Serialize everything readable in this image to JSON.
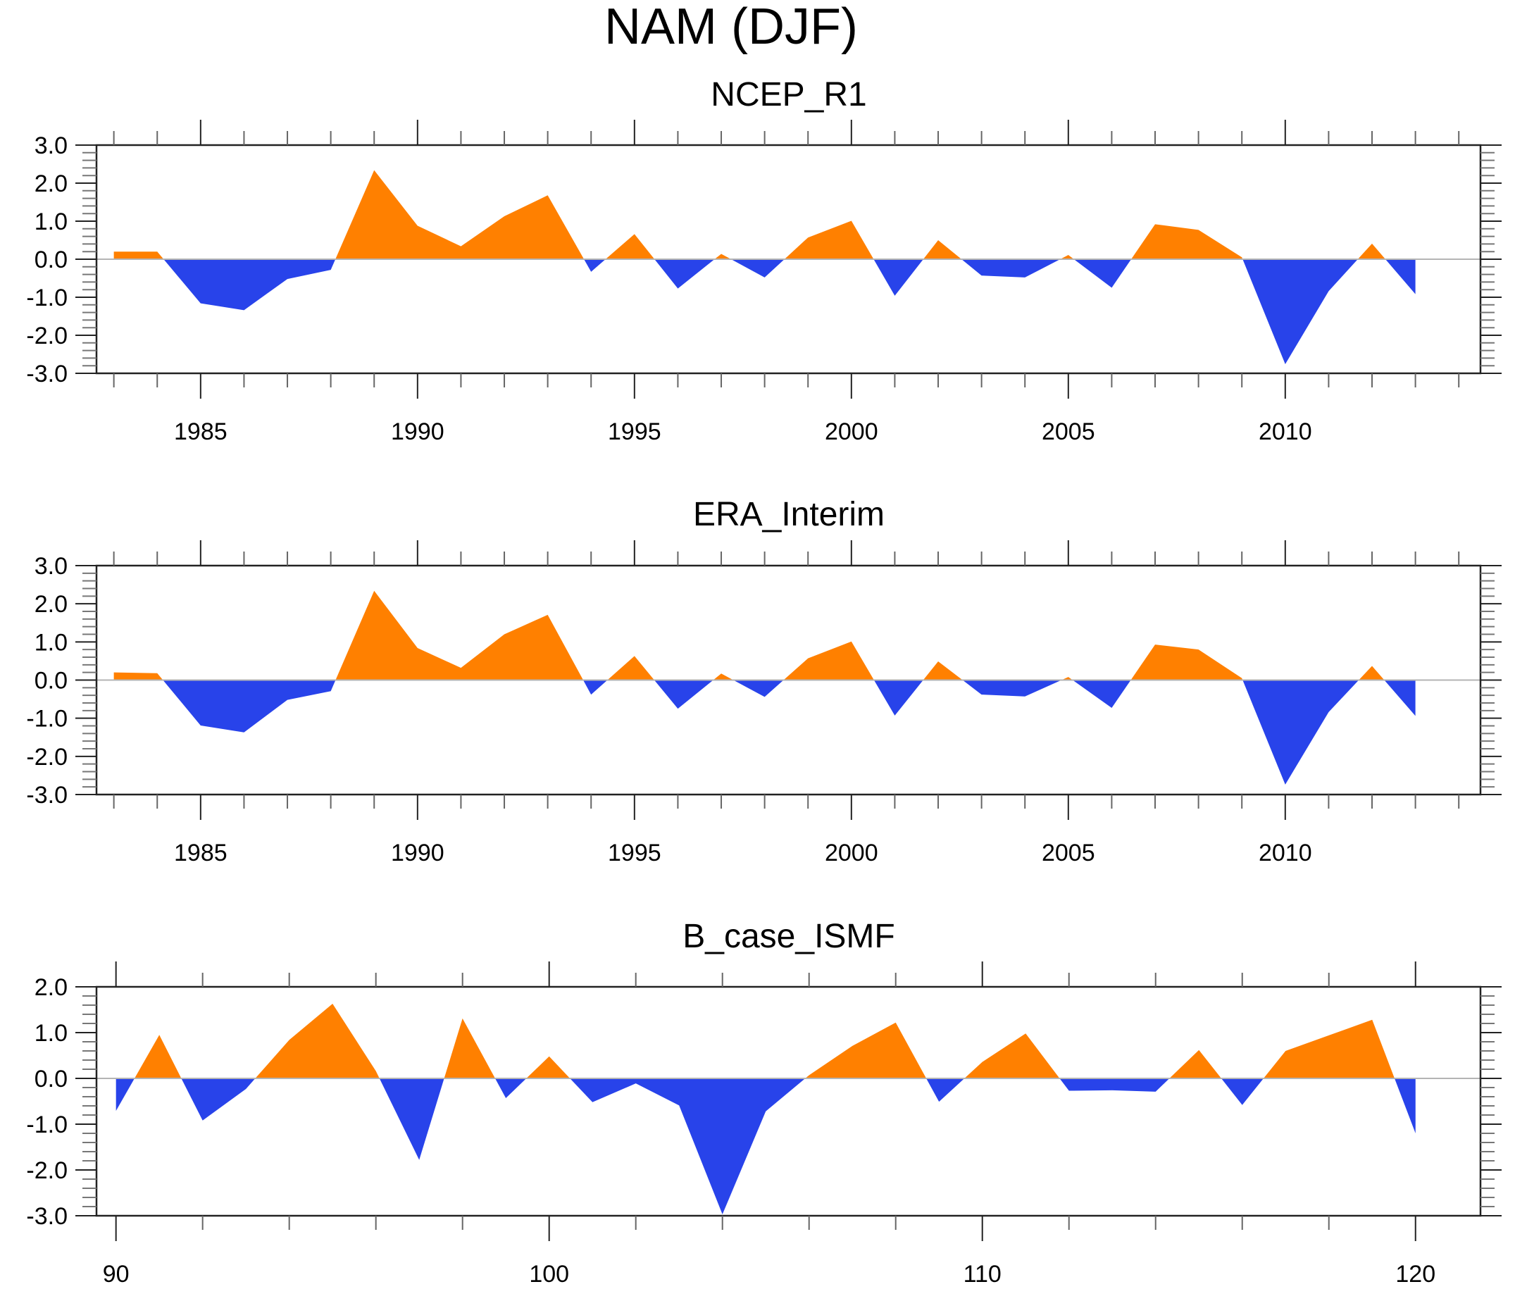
{
  "figure": {
    "title": "NAM (DJF)",
    "colors": {
      "positive": "#ff8000",
      "negative": "#2843ea",
      "axis": "#000000",
      "zero_line": "#b4b4b4"
    }
  },
  "chart_data": [
    {
      "type": "area",
      "title": "NCEP_R1",
      "xlabel": "",
      "ylabel": "",
      "xlim": [
        1982.6,
        2014.5
      ],
      "ylim": [
        -3.0,
        3.0
      ],
      "x_major_ticks": [
        1985,
        1990,
        1995,
        2000,
        2005,
        2010
      ],
      "x_tick_labels": [
        "1985",
        "1990",
        "1995",
        "2000",
        "2005",
        "2010"
      ],
      "x_minor_step": 1,
      "y_major_ticks": [
        3.0,
        2.0,
        1.0,
        0.0,
        -1.0,
        -2.0,
        -3.0
      ],
      "y_tick_labels": [
        "3.0",
        "2.0",
        "1.0",
        "0.0",
        "-1.0",
        "-2.0",
        "-3.0"
      ],
      "y_minor_step": 0.2,
      "grid": false,
      "fill_above_zero": "orange",
      "fill_below_zero": "blue",
      "x": [
        1983,
        1984,
        1985,
        1986,
        1987,
        1988,
        1989,
        1990,
        1991,
        1992,
        1993,
        1994,
        1995,
        1996,
        1997,
        1998,
        1999,
        2000,
        2001,
        2002,
        2003,
        2004,
        2005,
        2006,
        2007,
        2008,
        2009,
        2010,
        2011,
        2012,
        2013
      ],
      "values": [
        0.2,
        0.2,
        -1.16,
        -1.34,
        -0.52,
        -0.28,
        2.34,
        0.88,
        0.34,
        1.13,
        1.68,
        -0.33,
        0.66,
        -0.77,
        0.14,
        -0.48,
        0.57,
        1.01,
        -0.96,
        0.5,
        -0.43,
        -0.48,
        0.11,
        -0.75,
        0.92,
        0.77,
        0.05,
        -2.76,
        -0.84,
        0.41,
        -0.92
      ]
    },
    {
      "type": "area",
      "title": "ERA_Interim",
      "xlabel": "",
      "ylabel": "",
      "xlim": [
        1982.6,
        2014.5
      ],
      "ylim": [
        -3.0,
        3.0
      ],
      "x_major_ticks": [
        1985,
        1990,
        1995,
        2000,
        2005,
        2010
      ],
      "x_tick_labels": [
        "1985",
        "1990",
        "1995",
        "2000",
        "2005",
        "2010"
      ],
      "x_minor_step": 1,
      "y_major_ticks": [
        3.0,
        2.0,
        1.0,
        0.0,
        -1.0,
        -2.0,
        -3.0
      ],
      "y_tick_labels": [
        "3.0",
        "2.0",
        "1.0",
        "0.0",
        "-1.0",
        "-2.0",
        "-3.0"
      ],
      "y_minor_step": 0.2,
      "grid": false,
      "fill_above_zero": "orange",
      "fill_below_zero": "blue",
      "x": [
        1983,
        1984,
        1985,
        1986,
        1987,
        1988,
        1989,
        1990,
        1991,
        1992,
        1993,
        1994,
        1995,
        1996,
        1997,
        1998,
        1999,
        2000,
        2001,
        2002,
        2003,
        2004,
        2005,
        2006,
        2007,
        2008,
        2009,
        2010,
        2011,
        2012,
        2013
      ],
      "values": [
        0.2,
        0.18,
        -1.19,
        -1.37,
        -0.52,
        -0.29,
        2.34,
        0.84,
        0.32,
        1.2,
        1.71,
        -0.38,
        0.63,
        -0.75,
        0.17,
        -0.44,
        0.57,
        1.01,
        -0.93,
        0.49,
        -0.38,
        -0.43,
        0.08,
        -0.73,
        0.93,
        0.8,
        0.05,
        -2.74,
        -0.84,
        0.37,
        -0.94
      ]
    },
    {
      "type": "area",
      "title": "B_case_ISMF",
      "xlabel": "",
      "ylabel": "",
      "xlim": [
        89.55,
        121.5
      ],
      "ylim": [
        -3.0,
        2.0
      ],
      "x_major_ticks": [
        90,
        100,
        110,
        120
      ],
      "x_tick_labels": [
        "90",
        "100",
        "110",
        "120"
      ],
      "x_minor_step": 2,
      "y_major_ticks": [
        2.0,
        1.0,
        0.0,
        -1.0,
        -2.0,
        -3.0
      ],
      "y_tick_labels": [
        "2.0",
        "1.0",
        "0.0",
        "-1.0",
        "-2.0",
        "-3.0"
      ],
      "y_minor_step": 0.2,
      "grid": false,
      "fill_above_zero": "orange",
      "fill_below_zero": "blue",
      "x": [
        90,
        91,
        92,
        93,
        94,
        95,
        96,
        97,
        98,
        99,
        100,
        101,
        102,
        103,
        104,
        105,
        106,
        107,
        108,
        109,
        110,
        111,
        112,
        113,
        114,
        115,
        116,
        117,
        118,
        119,
        120
      ],
      "values": [
        -0.71,
        0.95,
        -0.92,
        -0.23,
        0.84,
        1.63,
        0.16,
        -1.78,
        1.31,
        -0.43,
        0.48,
        -0.52,
        -0.11,
        -0.59,
        -2.97,
        -0.72,
        0.07,
        0.71,
        1.22,
        -0.51,
        0.36,
        0.98,
        -0.27,
        -0.26,
        -0.29,
        0.62,
        -0.58,
        0.6,
        0.94,
        1.28,
        -1.2
      ]
    }
  ]
}
